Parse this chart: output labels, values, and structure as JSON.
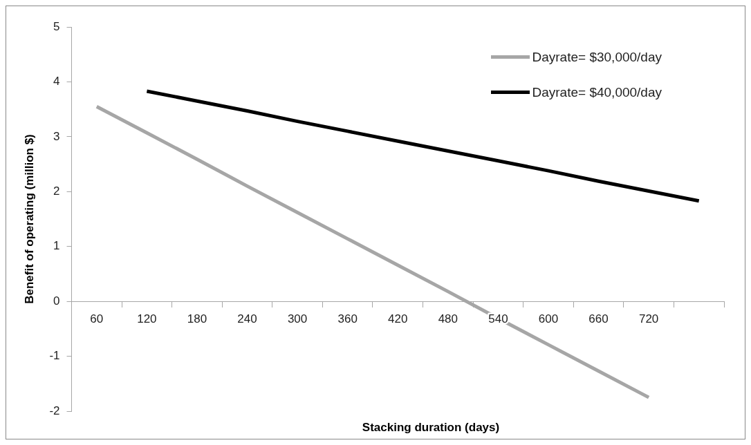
{
  "chart_data": {
    "type": "line",
    "xlabel": "Stacking duration (days)",
    "ylabel": "Benefit of operating (million $)",
    "categories": [
      "60",
      "120",
      "180",
      "240",
      "300",
      "360",
      "420",
      "480",
      "540",
      "600",
      "660",
      "720",
      null
    ],
    "series": [
      {
        "name": "Dayrate= $30,000/day",
        "color": "#a6a6a6",
        "values": [
          3.55,
          3.07,
          2.59,
          2.1,
          1.62,
          1.14,
          0.66,
          0.18,
          -0.31,
          -0.79,
          -1.27,
          -1.75,
          null
        ]
      },
      {
        "name": "Dayrate= $40,000/day",
        "color": "#000000",
        "values": [
          null,
          3.83,
          3.65,
          3.47,
          3.28,
          3.1,
          2.92,
          2.74,
          2.56,
          2.38,
          2.19,
          2.01,
          1.83
        ]
      }
    ],
    "ylim": [
      -2,
      5
    ],
    "yticks": [
      -2,
      -1,
      0,
      1,
      2,
      3,
      4,
      5
    ],
    "grid": false,
    "legend": "top right",
    "marker": "none",
    "line_style": "solid"
  }
}
